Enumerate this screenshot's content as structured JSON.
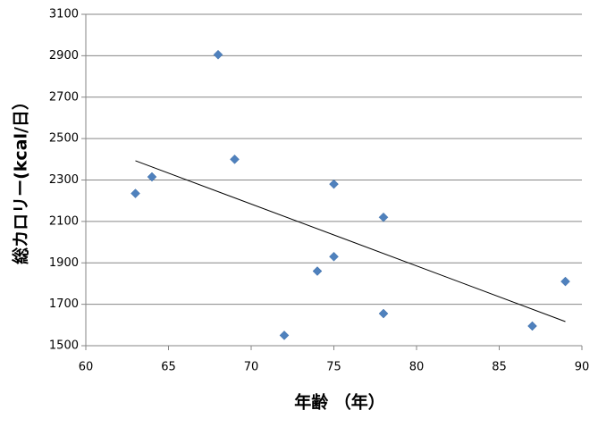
{
  "chart_data": {
    "type": "scatter",
    "x_label": "年齢 （年）",
    "y_label": "総カロリー(kcal/日）",
    "x": [
      63,
      64,
      68,
      69,
      72,
      74,
      75,
      75,
      78,
      78,
      87,
      89
    ],
    "values": [
      2235,
      2315,
      2905,
      2400,
      1550,
      1860,
      2280,
      1930,
      2120,
      1655,
      1595,
      1810
    ],
    "color": "#4f81bd",
    "marker": "diamond",
    "trendline": "linear",
    "xlim": [
      60,
      90
    ],
    "xticks": [
      60,
      65,
      70,
      75,
      80,
      85,
      90
    ],
    "ylim": [
      1500,
      3100
    ],
    "yticks": [
      1500,
      1700,
      1900,
      2100,
      2300,
      2500,
      2700,
      2900,
      3100
    ],
    "grid": true
  }
}
